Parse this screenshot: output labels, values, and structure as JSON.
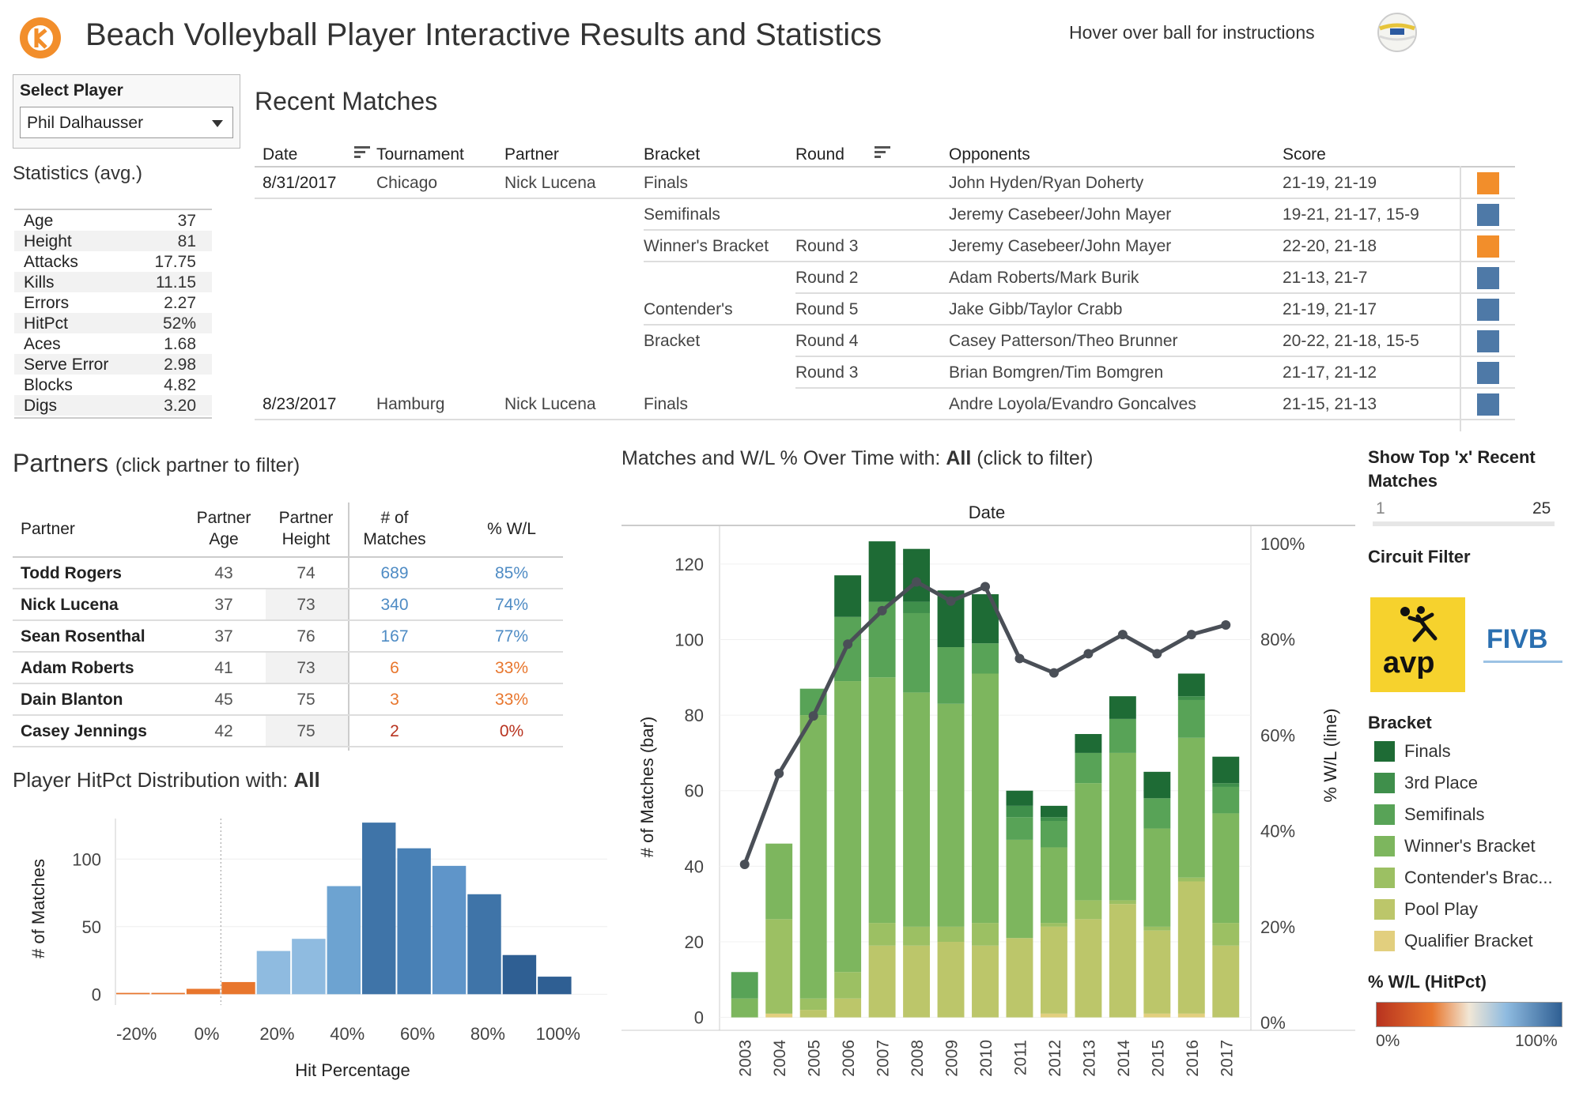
{
  "header": {
    "title": "Beach Volleyball Player Interactive Results and Statistics",
    "hover_text": "Hover over ball for instructions"
  },
  "select_player": {
    "label": "Select Player",
    "value": "Phil Dalhausser"
  },
  "statistics": {
    "title": "Statistics (avg.)",
    "rows": [
      {
        "key": "Age",
        "value": "37"
      },
      {
        "key": "Height",
        "value": "81"
      },
      {
        "key": "Attacks",
        "value": "17.75"
      },
      {
        "key": "Kills",
        "value": "11.15"
      },
      {
        "key": "Errors",
        "value": "2.27"
      },
      {
        "key": "HitPct",
        "value": "52%"
      },
      {
        "key": "Aces",
        "value": "1.68"
      },
      {
        "key": "Serve Error",
        "value": "2.98"
      },
      {
        "key": "Blocks",
        "value": "4.82"
      },
      {
        "key": "Digs",
        "value": "3.20"
      }
    ]
  },
  "recent_matches": {
    "title": "Recent Matches",
    "headers": {
      "date": "Date",
      "tournament": "Tournament",
      "partner": "Partner",
      "bracket": "Bracket",
      "round": "Round",
      "opponents": "Opponents",
      "score": "Score"
    },
    "rows": [
      {
        "date": "8/31/2017",
        "tournament": "Chicago",
        "partner": "Nick Lucena",
        "bracket": "Finals",
        "round": "",
        "opponents": "John Hyden/Ryan Doherty",
        "score": "21-19, 21-19",
        "result_color": "#f28e2b"
      },
      {
        "date": "",
        "tournament": "",
        "partner": "",
        "bracket": "Semifinals",
        "round": "",
        "opponents": "Jeremy Casebeer/John Mayer",
        "score": "19-21, 21-17, 15-9",
        "result_color": "#4e79a7"
      },
      {
        "date": "",
        "tournament": "",
        "partner": "",
        "bracket": "Winner's Bracket",
        "round": "Round 3",
        "opponents": "Jeremy Casebeer/John Mayer",
        "score": "22-20, 21-18",
        "result_color": "#f28e2b"
      },
      {
        "date": "",
        "tournament": "",
        "partner": "",
        "bracket": "",
        "round": "Round 2",
        "opponents": "Adam Roberts/Mark Burik",
        "score": "21-13, 21-7",
        "result_color": "#4e79a7"
      },
      {
        "date": "",
        "tournament": "",
        "partner": "",
        "bracket": "Contender's",
        "round": "Round 5",
        "opponents": "Jake Gibb/Taylor Crabb",
        "score": "21-19, 21-17",
        "result_color": "#4e79a7"
      },
      {
        "date": "",
        "tournament": "",
        "partner": "",
        "bracket": "Bracket",
        "round": "Round 4",
        "opponents": "Casey Patterson/Theo Brunner",
        "score": "20-22, 21-18, 15-5",
        "result_color": "#4e79a7"
      },
      {
        "date": "",
        "tournament": "",
        "partner": "",
        "bracket": "",
        "round": "Round 3",
        "opponents": "Brian Bomgren/Tim Bomgren",
        "score": "21-17, 21-12",
        "result_color": "#4e79a7"
      },
      {
        "date": "8/23/2017",
        "tournament": "Hamburg",
        "partner": "Nick Lucena",
        "bracket": "Finals",
        "round": "",
        "opponents": "Andre Loyola/Evandro Goncalves",
        "score": "21-15, 21-13",
        "result_color": "#4e79a7"
      }
    ]
  },
  "partners": {
    "title": "Partners",
    "subtitle": "(click partner to filter)",
    "headers": {
      "partner": "Partner",
      "age": "Partner Age",
      "height": "Partner Height",
      "matches": "# of Matches",
      "wl": "% W/L"
    },
    "rows": [
      {
        "name": "Todd Rogers",
        "age": "43",
        "height": "74",
        "matches": "689",
        "wl": "85%",
        "color": "#4e8bc4"
      },
      {
        "name": "Nick Lucena",
        "age": "37",
        "height": "73",
        "matches": "340",
        "wl": "74%",
        "color": "#4e8bc4"
      },
      {
        "name": "Sean Rosenthal",
        "age": "37",
        "height": "76",
        "matches": "167",
        "wl": "77%",
        "color": "#4e8bc4"
      },
      {
        "name": "Adam Roberts",
        "age": "41",
        "height": "73",
        "matches": "6",
        "wl": "33%",
        "color": "#e8762d"
      },
      {
        "name": "Dain Blanton",
        "age": "45",
        "height": "75",
        "matches": "3",
        "wl": "33%",
        "color": "#e8762d"
      },
      {
        "name": "Casey Jennings",
        "age": "42",
        "height": "75",
        "matches": "2",
        "wl": "0%",
        "color": "#b8331f"
      }
    ]
  },
  "histogram": {
    "title": "Player HitPct Distribution with:",
    "title_value": "All"
  },
  "time_chart": {
    "title": "Matches and W/L % Over Time with:",
    "title_value": "All",
    "title_suffix": "(click to filter)"
  },
  "side": {
    "top_x_label": "Show Top 'x' Recent Matches",
    "slider_min": "1",
    "slider_max": "25",
    "circuit_filter": "Circuit Filter",
    "avp_text": "avp",
    "fivb_text": "FIVB",
    "bracket_title": "Bracket",
    "brackets": [
      {
        "name": "Finals",
        "color": "#1e6b35"
      },
      {
        "name": "3rd Place",
        "color": "#3f8f4b"
      },
      {
        "name": "Semifinals",
        "color": "#58a357"
      },
      {
        "name": "Winner's Bracket",
        "color": "#7db65e"
      },
      {
        "name": "Contender's Brac...",
        "color": "#9cc063"
      },
      {
        "name": "Pool Play",
        "color": "#bcc66a"
      },
      {
        "name": "Qualifier Bracket",
        "color": "#e2cf7e"
      }
    ],
    "wl_title": "% W/L (HitPct)",
    "wl_min": "0%",
    "wl_max": "100%"
  },
  "chart_data": [
    {
      "type": "bar",
      "title": "Player HitPct Distribution with: All",
      "xlabel": "Hit Percentage",
      "ylabel": "# of Matches",
      "x_ticks": [
        "-20%",
        "0%",
        "20%",
        "40%",
        "60%",
        "80%",
        "100%"
      ],
      "y_ticks": [
        "0",
        "50",
        "100"
      ],
      "ylim": [
        -8,
        130
      ],
      "bins": [
        -20,
        -10,
        0,
        10,
        20,
        30,
        40,
        50,
        60,
        70,
        80,
        90,
        100
      ],
      "values": [
        1,
        1,
        4,
        9,
        32,
        41,
        80,
        127,
        108,
        95,
        74,
        29,
        13
      ],
      "colors": [
        "#e8762d",
        "#e8762d",
        "#e8762d",
        "#e8762d",
        "#8fbbe0",
        "#8fbbe0",
        "#6da3d1",
        "#3f74a8",
        "#4880b5",
        "#5f95c9",
        "#3f74a8",
        "#2f5f93",
        "#2f5f93"
      ]
    },
    {
      "type": "bar",
      "stacked": true,
      "title": "Matches and W/L % Over Time with: All",
      "xlabel": "Date",
      "ylabel": "# of Matches (bar)",
      "y2label": "% W/L (line)",
      "y_ticks": [
        "0",
        "20",
        "40",
        "60",
        "80",
        "100",
        "120"
      ],
      "y2_ticks": [
        "0%",
        "20%",
        "40%",
        "60%",
        "80%",
        "100%"
      ],
      "ylim": [
        -3,
        130
      ],
      "categories": [
        "2003",
        "2004",
        "2005",
        "2006",
        "2007",
        "2008",
        "2009",
        "2010",
        "2011",
        "2012",
        "2013",
        "2014",
        "2015",
        "2016",
        "2017"
      ],
      "series": [
        {
          "name": "Qualifier Bracket",
          "values": [
            0,
            1,
            0,
            0,
            0,
            0,
            0,
            0,
            0,
            1,
            0,
            0,
            1,
            1,
            0
          ]
        },
        {
          "name": "Pool Play",
          "values": [
            0,
            0,
            2,
            5,
            19,
            19,
            20,
            19,
            21,
            23,
            26,
            30,
            22,
            35,
            19
          ]
        },
        {
          "name": "Contender's Brac...",
          "values": [
            0,
            25,
            3,
            7,
            6,
            5,
            4,
            6,
            0,
            1,
            5,
            1,
            1,
            1,
            6
          ]
        },
        {
          "name": "Winner's Bracket",
          "values": [
            5,
            20,
            75,
            77,
            65,
            62,
            59,
            66,
            26,
            20,
            31,
            39,
            26,
            37,
            29
          ]
        },
        {
          "name": "Semifinals",
          "values": [
            7,
            0,
            7,
            17,
            20,
            21,
            15,
            8,
            6,
            7,
            8,
            9,
            8,
            10,
            7
          ]
        },
        {
          "name": "3rd Place",
          "values": [
            0,
            0,
            0,
            0,
            0,
            3,
            0,
            0,
            3,
            1,
            0,
            0,
            0,
            1,
            1
          ]
        },
        {
          "name": "Finals",
          "values": [
            0,
            0,
            0,
            11,
            16,
            14,
            15,
            13,
            4,
            3,
            5,
            6,
            7,
            6,
            7
          ]
        }
      ],
      "wl_line": [
        33,
        52,
        64,
        79,
        86,
        92,
        88,
        91,
        76,
        73,
        77,
        81,
        77,
        81,
        83
      ]
    }
  ]
}
